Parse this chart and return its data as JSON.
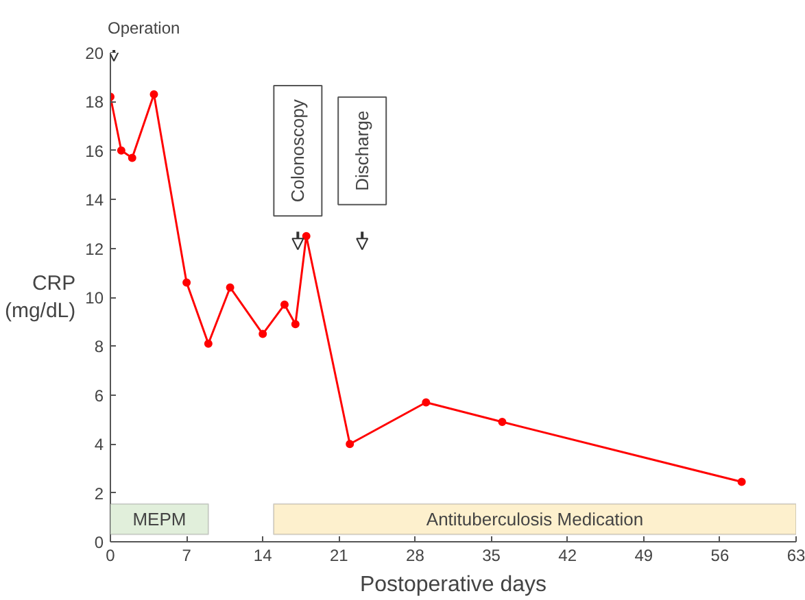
{
  "chart_data": {
    "type": "line",
    "xlabel": "Postoperative days",
    "ylabel": "CRP\n(mg/dL)",
    "x": [
      0,
      1,
      2,
      4,
      7,
      9,
      11,
      14,
      16,
      17,
      18,
      22,
      29,
      36,
      58
    ],
    "series": [
      {
        "color": "#ff0000",
        "values": [
          18.2,
          16.0,
          15.7,
          18.3,
          10.6,
          8.1,
          10.4,
          8.5,
          9.7,
          8.9,
          12.5,
          4.0,
          5.7,
          4.9,
          2.45
        ]
      }
    ],
    "marker": "circle",
    "line_style": "solid",
    "xlim": [
      0,
      63
    ],
    "xticks": [
      0,
      7,
      14,
      21,
      28,
      35,
      42,
      49,
      56,
      63
    ],
    "ylim": [
      0,
      20
    ],
    "yticks": [
      0,
      2,
      4,
      6,
      8,
      10,
      12,
      14,
      16,
      18,
      20
    ],
    "grid": false,
    "bands": [
      {
        "axis": "x",
        "from": 0,
        "to": 9,
        "label": "MEPM",
        "color": "#e1efdb"
      },
      {
        "axis": "x",
        "from": 15,
        "to": 63,
        "label": "Antituberculosis Medication",
        "color": "#fdf0cd"
      }
    ],
    "annotations": [
      "Operation",
      "Colonoscopy",
      "Discharge"
    ]
  }
}
